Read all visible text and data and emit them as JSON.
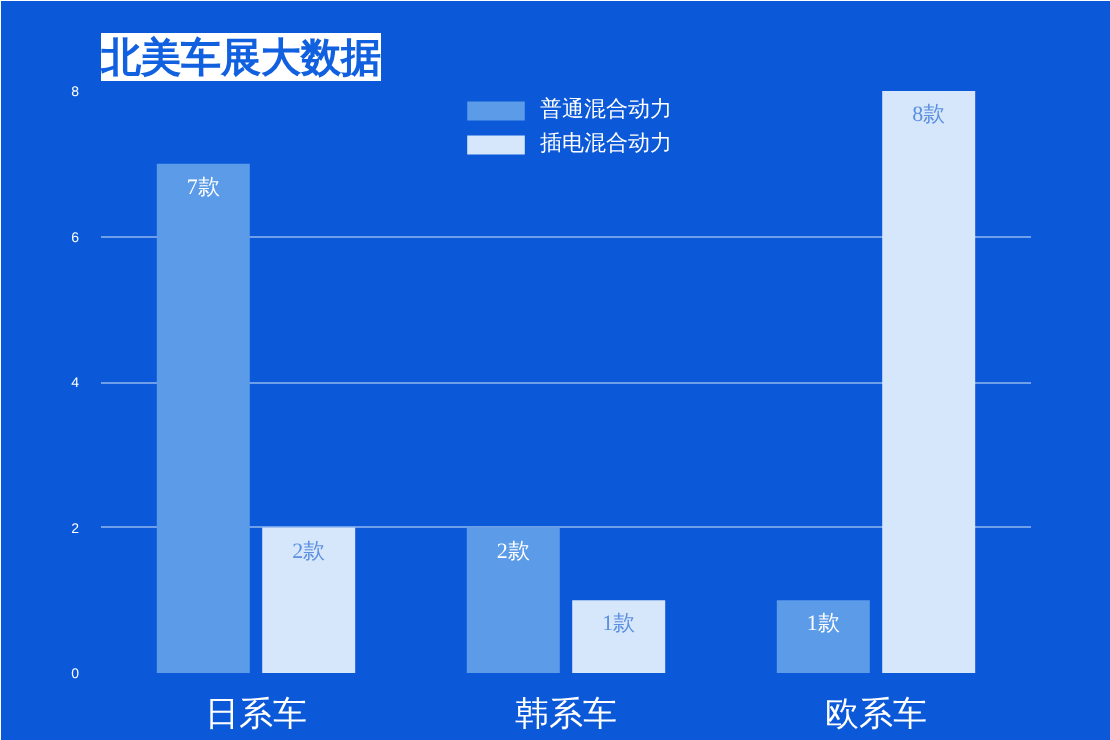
{
  "chart_data": {
    "type": "bar",
    "title": "北美车展大数据",
    "categories": [
      "日系车",
      "韩系车",
      "欧系车"
    ],
    "series": [
      {
        "name": "普通混合动力",
        "color": "#5b9be8",
        "values": [
          7,
          2,
          1
        ],
        "value_labels": [
          "7款",
          "2款",
          "1款"
        ]
      },
      {
        "name": "插电混合动力",
        "color": "#d6e6fb",
        "values": [
          2,
          1,
          8
        ],
        "value_labels": [
          "2款",
          "1款",
          "8款"
        ]
      }
    ],
    "ylim": [
      0,
      8
    ],
    "yticks": [
      0,
      2,
      4,
      6,
      8
    ],
    "grid": "y",
    "legend": "top"
  }
}
